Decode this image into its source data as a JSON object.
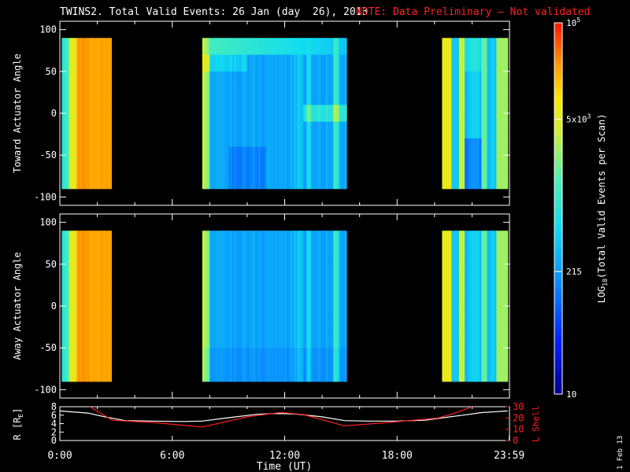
{
  "title": {
    "main": "TWINS2. Total Valid Events: 26 Jan (day  26), 2013",
    "note": "NOTE: Data Preliminary – Not validated",
    "note_color": "#ff2020"
  },
  "footer": {
    "date_stamp": "1 Feb 13"
  },
  "chart_data": [
    {
      "type": "heatmap",
      "name": "toward",
      "ylabel": "Toward Actuator Angle",
      "ylim": [
        -110,
        110
      ],
      "yticks": [
        "100",
        "50",
        "0",
        "-50",
        "-100"
      ],
      "yvals": [
        100,
        50,
        0,
        -50,
        -100
      ],
      "xlim": [
        0,
        24
      ],
      "angle_range": [
        -90,
        90
      ],
      "data_blocks": [
        {
          "start": 0.1,
          "end": 2.75,
          "level": "high"
        },
        {
          "start": 7.6,
          "end": 15.3,
          "level": "medium"
        },
        {
          "start": 20.4,
          "end": 23.9,
          "level": "mixed"
        }
      ]
    },
    {
      "type": "heatmap",
      "name": "away",
      "ylabel": "Away Actuator Angle",
      "ylim": [
        -110,
        110
      ],
      "yticks": [
        "100",
        "50",
        "0",
        "-50",
        "-100"
      ],
      "yvals": [
        100,
        50,
        0,
        -50,
        -100
      ],
      "xlim": [
        0,
        24
      ],
      "angle_range": [
        -90,
        90
      ],
      "data_blocks": [
        {
          "start": 0.1,
          "end": 2.75,
          "level": "high"
        },
        {
          "start": 7.6,
          "end": 15.3,
          "level": "medium"
        },
        {
          "start": 20.4,
          "end": 23.9,
          "level": "mixed"
        }
      ]
    },
    {
      "type": "line",
      "name": "orbit",
      "xlabel": "Time (UT)",
      "xticks": [
        "0:00",
        "6:00",
        "12:00",
        "18:00",
        "23:59"
      ],
      "xvals": [
        0,
        6,
        12,
        18,
        23.983
      ],
      "xlim": [
        0,
        24
      ],
      "left_axis": {
        "label": "R [R",
        "label_sub": "E",
        "label_end": "]",
        "ylim": [
          0,
          8
        ],
        "ticks": [
          "8",
          "6",
          "4",
          "2",
          "0"
        ],
        "tickvals": [
          8,
          6,
          4,
          2,
          0
        ],
        "color": "#ffffff"
      },
      "right_axis": {
        "label": "L Shell",
        "ylim": [
          0,
          30
        ],
        "ticks": [
          "30",
          "20",
          "10",
          "0"
        ],
        "tickvals": [
          30,
          20,
          10,
          0
        ],
        "color": "#ff2020"
      },
      "series": [
        {
          "axis": "left",
          "color": "#ffffff",
          "x": [
            0,
            1.5,
            2.5,
            3.5,
            5,
            6.5,
            7.6,
            9,
            10.5,
            11.5,
            12.5,
            14,
            15.2,
            16.5,
            18,
            19.5,
            20.3,
            21.5,
            22.5,
            23.9
          ],
          "y": [
            7.0,
            6.5,
            5.5,
            4.7,
            4.6,
            4.5,
            4.6,
            5.4,
            6.2,
            6.4,
            6.3,
            5.6,
            4.7,
            4.6,
            4.6,
            4.8,
            5.3,
            6.0,
            6.6,
            7.0
          ]
        },
        {
          "axis": "right",
          "color": "#ff2020",
          "x": [
            1.6,
            2.8,
            5,
            7.6,
            10,
            11.8,
            13,
            15.2,
            17.5,
            20.2,
            21.2,
            22
          ],
          "y": [
            30,
            18,
            16,
            12,
            21,
            25,
            23,
            13,
            16,
            20,
            25,
            30
          ]
        }
      ]
    }
  ],
  "colorbar": {
    "label": "LOG",
    "label_sub": "10",
    "label_end": "(Total Valid Events per Scan)",
    "ticks": [
      {
        "base": "10",
        "sup": "5",
        "frac": 1.0
      },
      {
        "base": "5x10",
        "sup": "3",
        "frac": 0.74
      },
      {
        "base": "215",
        "sup": "",
        "frac": 0.33
      },
      {
        "base": "10",
        "sup": "",
        "frac": 0.0
      }
    ]
  }
}
